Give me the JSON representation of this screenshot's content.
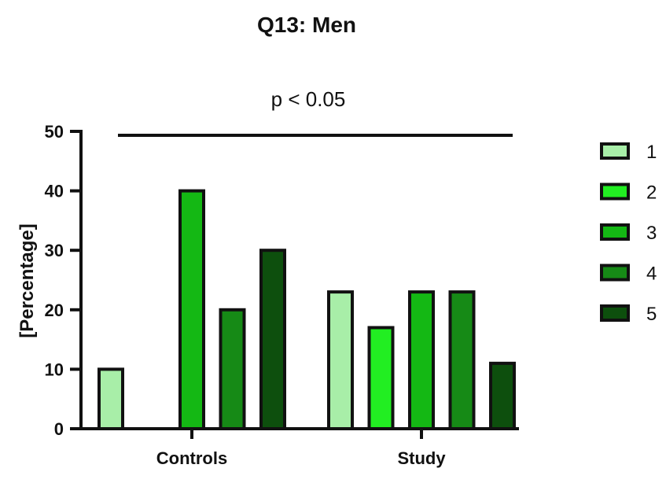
{
  "chart_data": {
    "type": "bar",
    "title": "Q13: Men",
    "annotation": "p < 0.05",
    "xlabel": "",
    "ylabel": "[Percentage]",
    "ylim": [
      0,
      50
    ],
    "yticks": [
      "0",
      "10",
      "20",
      "30",
      "40",
      "50"
    ],
    "categories": [
      "Controls",
      "Study"
    ],
    "series": [
      {
        "name": "1",
        "color": "#a8eea8",
        "values": [
          10,
          23
        ]
      },
      {
        "name": "2",
        "color": "#22ee22",
        "values": [
          0,
          17
        ]
      },
      {
        "name": "3",
        "color": "#14b814",
        "values": [
          40,
          23
        ]
      },
      {
        "name": "4",
        "color": "#168a16",
        "values": [
          20,
          23
        ]
      },
      {
        "name": "5",
        "color": "#0d4f0d",
        "values": [
          30,
          11
        ]
      }
    ],
    "grid": false,
    "legend_position": "right"
  }
}
